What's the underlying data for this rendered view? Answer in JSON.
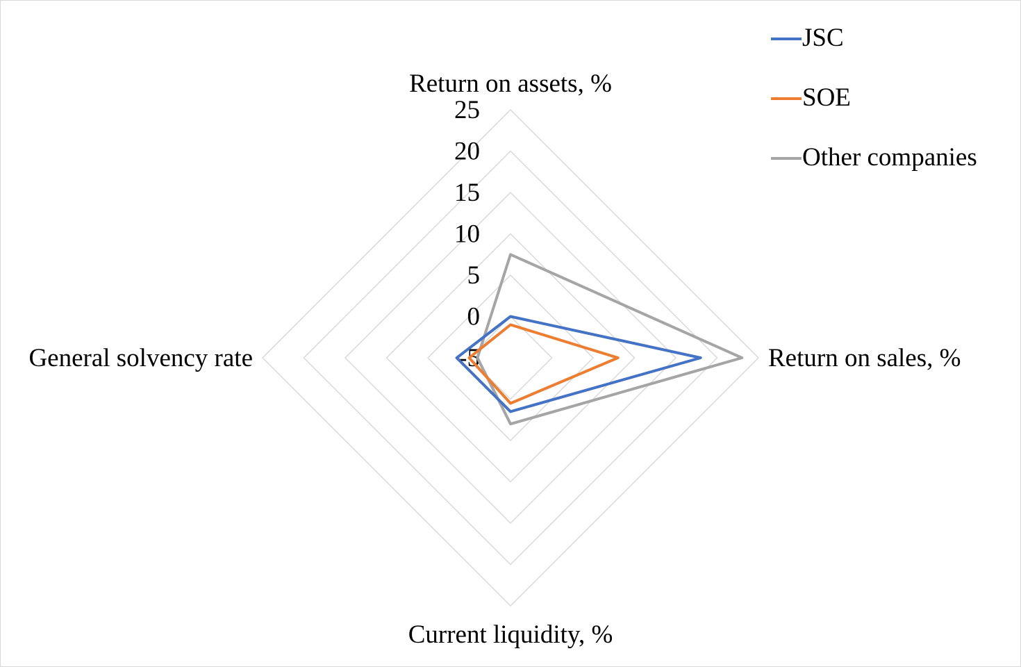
{
  "chart_data": {
    "type": "radar",
    "axes": [
      "Return on assets, %",
      "Return on sales, %",
      "Current liquidity, %",
      "General solvency rate"
    ],
    "r_ticks": [
      -5,
      0,
      5,
      10,
      15,
      20,
      25
    ],
    "r_range": [
      -5,
      25
    ],
    "grid": true,
    "legend_position": "top-right",
    "series": [
      {
        "name": "JSC",
        "color": "#4472c4",
        "values": [
          0,
          18,
          1.5,
          1.5
        ]
      },
      {
        "name": "SOE",
        "color": "#ed7d31",
        "values": [
          -1,
          8,
          0.5,
          0
        ]
      },
      {
        "name": "Other companies",
        "color": "#a5a5a5",
        "values": [
          7.5,
          23,
          3,
          -1
        ]
      }
    ]
  }
}
